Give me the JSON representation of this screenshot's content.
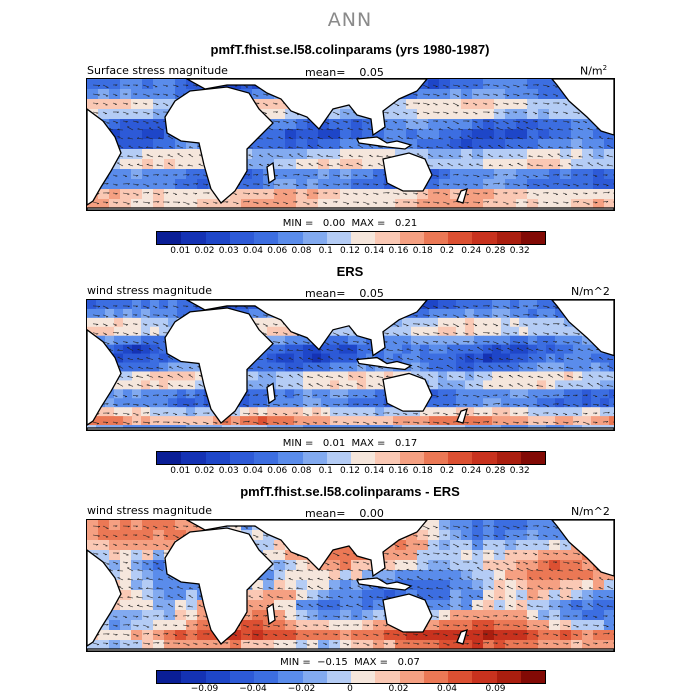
{
  "title": "ANN",
  "panels": [
    {
      "id": "model",
      "heading": "pmfT.fhist.se.l58.colinparams (yrs 1980-1987)",
      "left_label": "Surface stress magnitude",
      "mean_label": "mean=",
      "mean_value": "0.05",
      "units": "N/m",
      "units_sup": "2",
      "min_label": "MIN =",
      "min_value": "0.00",
      "max_label": "MAX =",
      "max_value": "0.21",
      "palette": "magnitude"
    },
    {
      "id": "obs",
      "heading": "ERS",
      "left_label": "wind stress magnitude",
      "mean_label": "mean=",
      "mean_value": "0.05",
      "units": "N/m^2",
      "units_sup": "",
      "min_label": "MIN =",
      "min_value": "0.01",
      "max_label": "MAX =",
      "max_value": "0.17",
      "palette": "magnitude"
    },
    {
      "id": "diff",
      "heading": "pmfT.fhist.se.l58.colinparams - ERS",
      "left_label": "wind stress magnitude",
      "mean_label": "mean=",
      "mean_value": "0.00",
      "units": "N/m^2",
      "units_sup": "",
      "min_label": "MIN =",
      "min_value": "−0.15",
      "max_label": "MAX =",
      "max_value": "0.07",
      "palette": "difference"
    }
  ],
  "colorbars": {
    "magnitude": {
      "colors": [
        "#0a1e96",
        "#1432b4",
        "#1e46c8",
        "#2d5ad7",
        "#3c6ee1",
        "#5a8ceb",
        "#82aaf0",
        "#b4ccf5",
        "#f5e6dc",
        "#fac8b4",
        "#f5a082",
        "#eb7855",
        "#dc5032",
        "#c8321e",
        "#aa1e0f",
        "#820a05"
      ],
      "labels": [
        "0.01",
        "0.02",
        "0.03",
        "0.04",
        "0.06",
        "0.08",
        "0.1",
        "0.12",
        "0.14",
        "0.16",
        "0.18",
        "0.2",
        "0.24",
        "0.28",
        "0.32"
      ]
    },
    "difference": {
      "colors": [
        "#0a1e96",
        "#1432b4",
        "#1e46c8",
        "#2d5ad7",
        "#3c6ee1",
        "#5a8ceb",
        "#82aaf0",
        "#b4ccf5",
        "#f5e6dc",
        "#fac8b4",
        "#f5a082",
        "#eb7855",
        "#dc5032",
        "#c8321e",
        "#aa1e0f",
        "#820a05"
      ],
      "labels": [
        "−0.09",
        "−0.04",
        "−0.02",
        "0",
        "0.02",
        "0.04",
        "0.09"
      ]
    }
  }
}
